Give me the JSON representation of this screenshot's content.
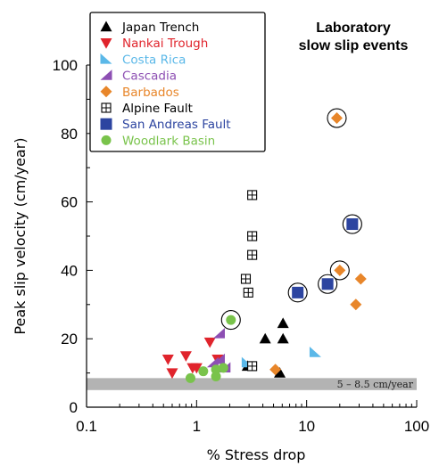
{
  "chart_data": {
    "type": "scatter",
    "title": "Laboratory\nslow slip events",
    "xlabel": "% Stress drop",
    "ylabel": "Peak slip velocity (cm/year)",
    "xscale": "log",
    "xlim": [
      0.1,
      100
    ],
    "ylim": [
      0,
      100
    ],
    "xticks": [
      0.1,
      1,
      10,
      100
    ],
    "xtick_labels": [
      "0.1",
      "1",
      "10",
      "100"
    ],
    "yticks": [
      0,
      20,
      40,
      60,
      80,
      100
    ],
    "ytick_labels": [
      "0",
      "20",
      "40",
      "60",
      "80",
      "100"
    ],
    "grid": false,
    "legend_position": "top-left",
    "band": {
      "y_range": [
        5,
        8.5
      ],
      "label": "5 – 8.5 cm/year",
      "color": "#b3b3b3"
    },
    "series": [
      {
        "name": "Japan Trench",
        "marker": "triangle-up",
        "color": "#000000",
        "points": [
          [
            2.9,
            12
          ],
          [
            4.2,
            20
          ],
          [
            5.7,
            10
          ],
          [
            6.1,
            20
          ],
          [
            6.1,
            24.5
          ]
        ]
      },
      {
        "name": "Nankai Trough",
        "marker": "triangle-down",
        "color": "#e0242c",
        "points": [
          [
            0.55,
            14
          ],
          [
            0.6,
            10
          ],
          [
            0.8,
            15
          ],
          [
            0.92,
            11.5
          ],
          [
            1.0,
            11.5
          ],
          [
            1.32,
            19
          ],
          [
            1.55,
            14
          ]
        ]
      },
      {
        "name": "Costa Rica",
        "marker": "right-triangle",
        "color": "#5bb8e8",
        "points": [
          [
            2.9,
            13
          ],
          [
            12,
            16
          ]
        ]
      },
      {
        "name": "Cascadia",
        "marker": "left-triangle",
        "color": "#8d4fb3",
        "points": [
          [
            1.4,
            13
          ],
          [
            1.6,
            14
          ],
          [
            1.6,
            21.5
          ],
          [
            1.8,
            11.5
          ]
        ]
      },
      {
        "name": "Barbados",
        "marker": "diamond",
        "color": "#e8862a",
        "points": [
          [
            5.2,
            11
          ],
          [
            18.8,
            84.5
          ],
          [
            20,
            40
          ],
          [
            28,
            30
          ],
          [
            31,
            37.5
          ]
        ]
      },
      {
        "name": "Alpine Fault",
        "marker": "square-cross",
        "color": "#000000",
        "points": [
          [
            2.8,
            37.5
          ],
          [
            2.95,
            33.5
          ],
          [
            3.2,
            44.5
          ],
          [
            3.2,
            50
          ],
          [
            3.2,
            62
          ],
          [
            3.2,
            12
          ]
        ]
      },
      {
        "name": "San Andreas Fault",
        "marker": "square",
        "color": "#2c44a0",
        "points": [
          [
            8.3,
            33.5
          ],
          [
            15.5,
            36
          ],
          [
            26,
            53.5
          ]
        ]
      },
      {
        "name": "Woodlark Basin",
        "marker": "circle",
        "color": "#79c34b",
        "points": [
          [
            0.88,
            8.5
          ],
          [
            1.15,
            10.5
          ],
          [
            1.5,
            9
          ],
          [
            1.5,
            11
          ],
          [
            1.75,
            11.5
          ],
          [
            2.05,
            25.5
          ]
        ]
      }
    ],
    "circled_points": [
      {
        "series": "Barbados",
        "x": 18.8,
        "y": 84.5
      },
      {
        "series": "Barbados",
        "x": 20,
        "y": 40
      },
      {
        "series": "San Andreas Fault",
        "x": 8.3,
        "y": 33.5
      },
      {
        "series": "San Andreas Fault",
        "x": 15.5,
        "y": 36
      },
      {
        "series": "San Andreas Fault",
        "x": 26,
        "y": 53.5
      },
      {
        "series": "Woodlark Basin",
        "x": 2.05,
        "y": 25.5
      }
    ]
  }
}
